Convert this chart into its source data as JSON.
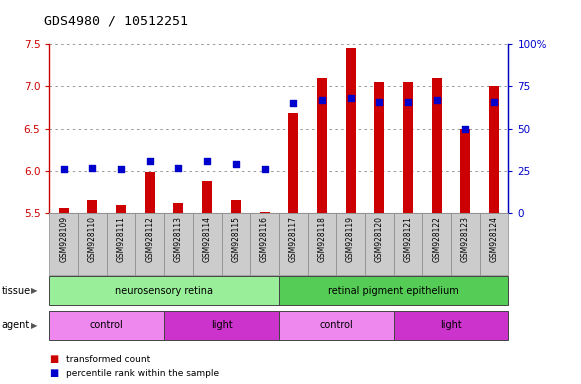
{
  "title": "GDS4980 / 10512251",
  "samples": [
    "GSM928109",
    "GSM928110",
    "GSM928111",
    "GSM928112",
    "GSM928113",
    "GSM928114",
    "GSM928115",
    "GSM928116",
    "GSM928117",
    "GSM928118",
    "GSM928119",
    "GSM928120",
    "GSM928121",
    "GSM928122",
    "GSM928123",
    "GSM928124"
  ],
  "transformed_count": [
    5.56,
    5.65,
    5.6,
    5.99,
    5.62,
    5.88,
    5.65,
    5.51,
    6.68,
    7.1,
    7.45,
    7.05,
    7.05,
    7.1,
    6.5,
    7.0
  ],
  "percentile_rank": [
    26,
    27,
    26,
    31,
    27,
    31,
    29,
    26,
    65,
    67,
    68,
    66,
    66,
    67,
    50,
    66
  ],
  "ymin": 5.5,
  "ymax": 7.5,
  "y2min": 0,
  "y2max": 100,
  "yticks": [
    5.5,
    6.0,
    6.5,
    7.0,
    7.5
  ],
  "y2ticks": [
    0,
    25,
    50,
    75,
    100
  ],
  "y2ticklabels": [
    "0",
    "25",
    "50",
    "75",
    "100%"
  ],
  "bar_color": "#cc0000",
  "dot_color": "#0000cc",
  "bar_width": 0.35,
  "tissue_groups": [
    {
      "label": "neurosensory retina",
      "start": 0,
      "end": 7,
      "color": "#99ee99"
    },
    {
      "label": "retinal pigment epithelium",
      "start": 8,
      "end": 15,
      "color": "#55cc55"
    }
  ],
  "agent_groups": [
    {
      "label": "control",
      "start": 0,
      "end": 3,
      "color": "#ee88ee"
    },
    {
      "label": "light",
      "start": 4,
      "end": 7,
      "color": "#cc33cc"
    },
    {
      "label": "control",
      "start": 8,
      "end": 11,
      "color": "#ee88ee"
    },
    {
      "label": "light",
      "start": 12,
      "end": 15,
      "color": "#cc33cc"
    }
  ],
  "legend_items": [
    {
      "label": "transformed count",
      "color": "#cc0000"
    },
    {
      "label": "percentile rank within the sample",
      "color": "#0000cc"
    }
  ],
  "left_axis_color": "#cc0000",
  "right_axis_color": "#0000cc",
  "grid_color": "#888888",
  "bar_bottom": 5.5,
  "label_bg_color": "#cccccc",
  "label_border_color": "#888888",
  "tissue_border_color": "#444444",
  "fig_bg": "#ffffff",
  "spine_color": "#888888"
}
